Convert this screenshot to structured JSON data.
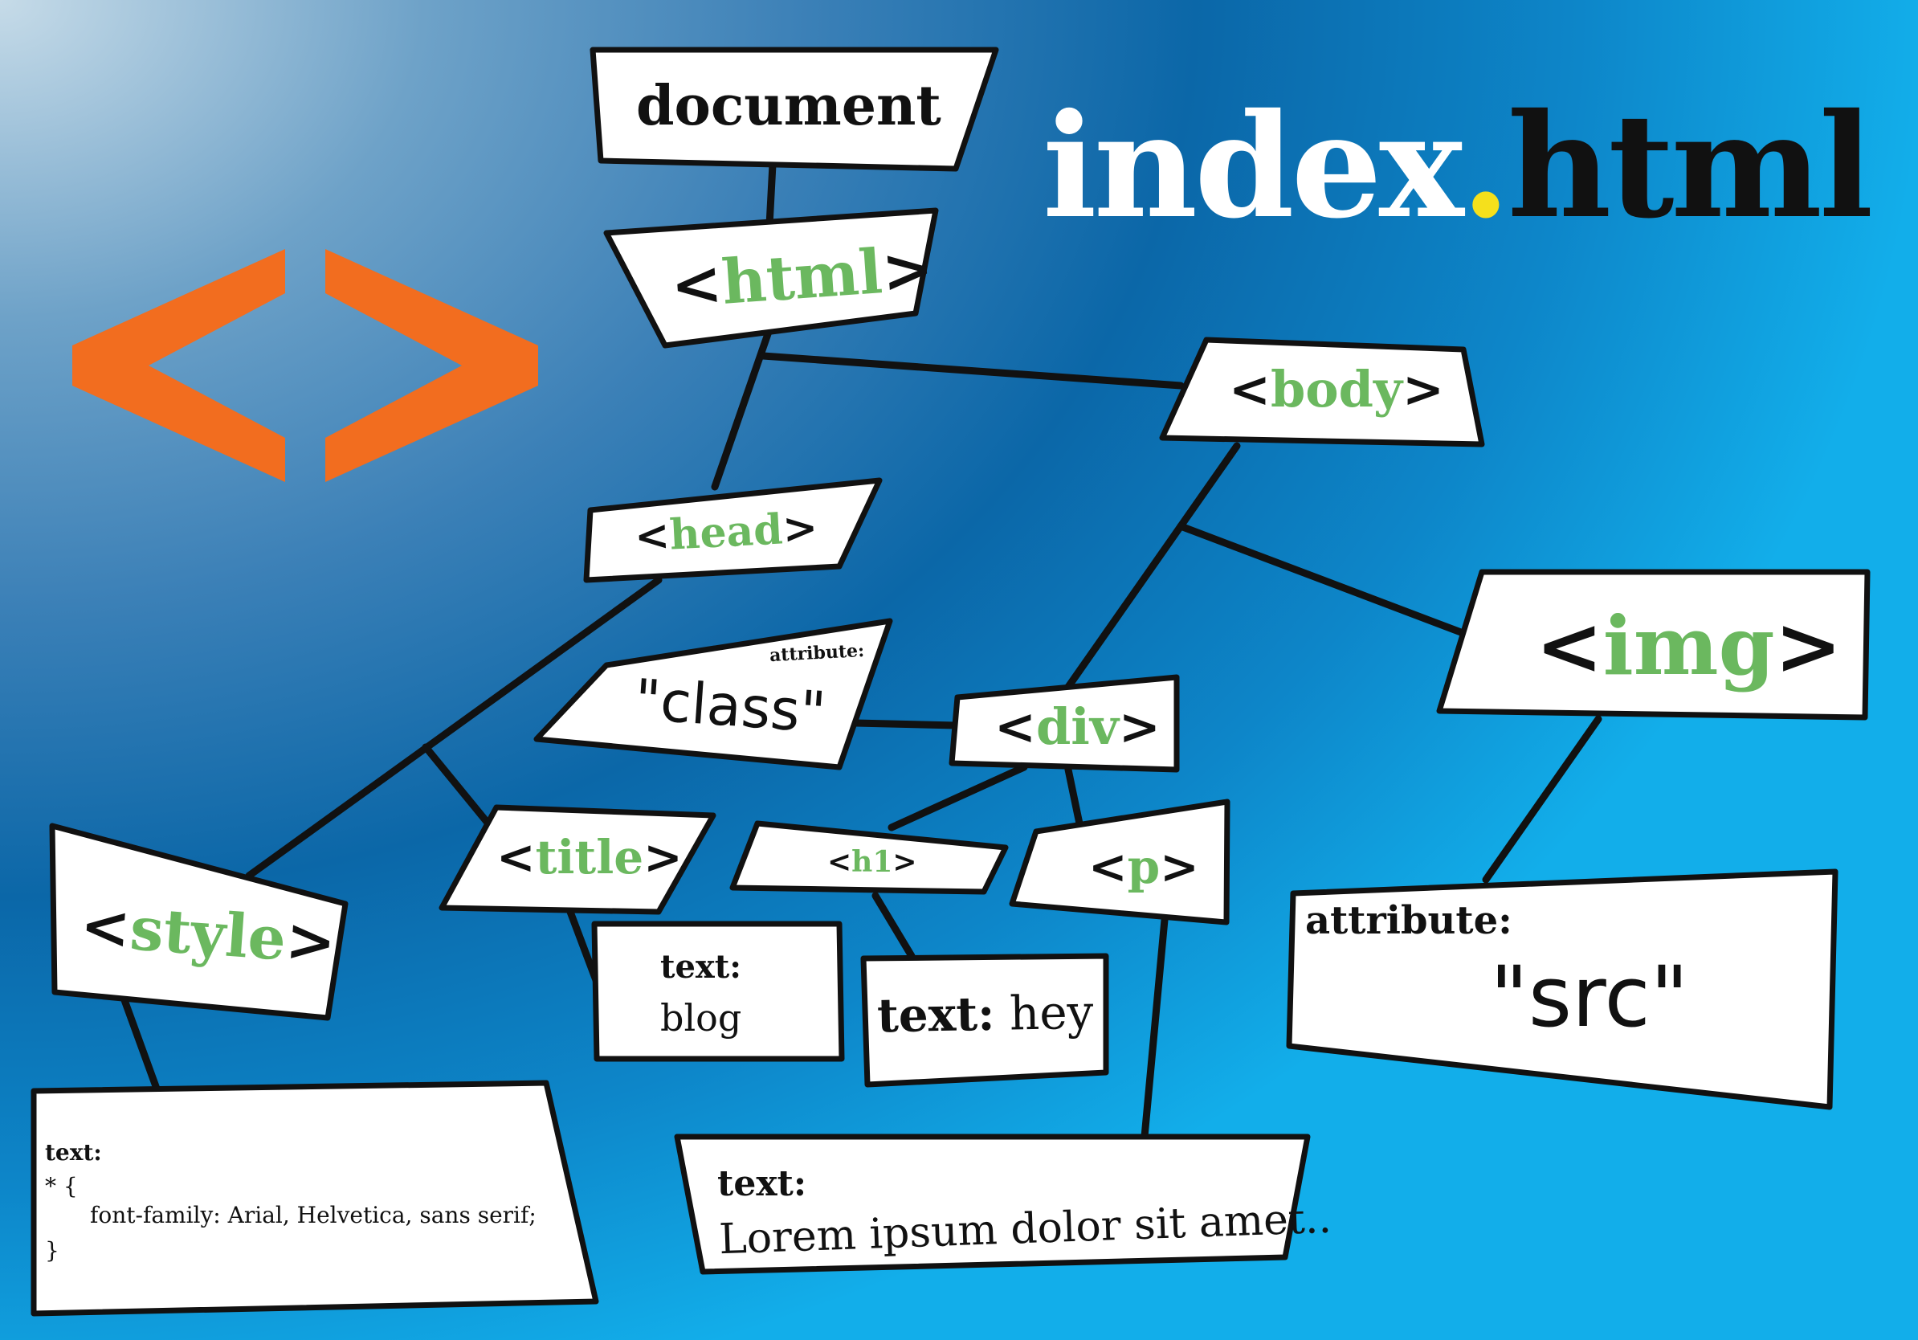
{
  "title": {
    "name": "index",
    "dot": ".",
    "ext": "html"
  },
  "colors": {
    "accent_green": "#6bb85f",
    "logo_orange": "#f26d1f",
    "title_dot": "#f5e01c"
  },
  "logo": {
    "icon": "code-brackets-icon"
  },
  "nodes": {
    "document": "document",
    "html": "html",
    "head": "head",
    "body": "body",
    "img": "img",
    "div": "div",
    "title": "title",
    "style": "style",
    "h1": "h1",
    "p": "p",
    "class_attr": {
      "label": "attribute:",
      "value": "\"class\""
    },
    "src_attr": {
      "label": "attribute:",
      "value": "\"src\""
    },
    "text_blog": {
      "label": "text:",
      "value": "blog"
    },
    "text_hey": {
      "label": "text:",
      "value": "hey"
    },
    "text_lorem": {
      "label": "text:",
      "value": "Lorem ipsum dolor sit amet.."
    },
    "text_style": {
      "label": "text:",
      "line1": "* {",
      "line2": "font-family: Arial, Helvetica, sans serif;",
      "line3": "}"
    }
  },
  "brackets": {
    "open": "<",
    "close": ">"
  }
}
